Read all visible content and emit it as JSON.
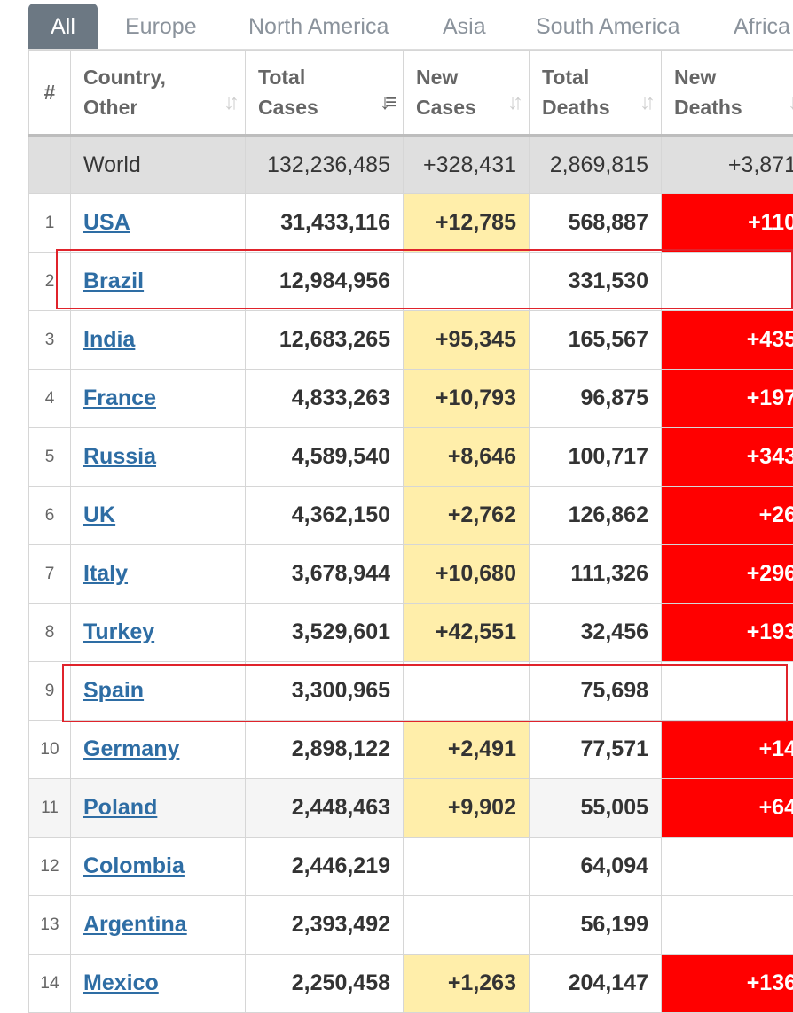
{
  "tabs": [
    {
      "label": "All",
      "active": true
    },
    {
      "label": "Europe"
    },
    {
      "label": "North America"
    },
    {
      "label": "Asia"
    },
    {
      "label": "South America"
    },
    {
      "label": "Africa"
    }
  ],
  "headers": {
    "rank": "#",
    "country": [
      "Country,",
      "Other"
    ],
    "total_cases": [
      "Total",
      "Cases"
    ],
    "new_cases": [
      "New",
      "Cases"
    ],
    "total_deaths": [
      "Total",
      "Deaths"
    ],
    "new_deaths": [
      "New",
      "Deaths"
    ]
  },
  "world": {
    "country": "World",
    "total_cases": "132,236,485",
    "new_cases": "+328,431",
    "total_deaths": "2,869,815",
    "new_deaths": "+3,871"
  },
  "rows": [
    {
      "rank": "1",
      "country": "USA",
      "total_cases": "31,433,116",
      "new_cases": "+12,785",
      "total_deaths": "568,887",
      "new_deaths": "+110"
    },
    {
      "rank": "2",
      "country": "Brazil",
      "total_cases": "12,984,956",
      "new_cases": "",
      "total_deaths": "331,530",
      "new_deaths": ""
    },
    {
      "rank": "3",
      "country": "India",
      "total_cases": "12,683,265",
      "new_cases": "+95,345",
      "total_deaths": "165,567",
      "new_deaths": "+435"
    },
    {
      "rank": "4",
      "country": "France",
      "total_cases": "4,833,263",
      "new_cases": "+10,793",
      "total_deaths": "96,875",
      "new_deaths": "+197"
    },
    {
      "rank": "5",
      "country": "Russia",
      "total_cases": "4,589,540",
      "new_cases": "+8,646",
      "total_deaths": "100,717",
      "new_deaths": "+343"
    },
    {
      "rank": "6",
      "country": "UK",
      "total_cases": "4,362,150",
      "new_cases": "+2,762",
      "total_deaths": "126,862",
      "new_deaths": "+26"
    },
    {
      "rank": "7",
      "country": "Italy",
      "total_cases": "3,678,944",
      "new_cases": "+10,680",
      "total_deaths": "111,326",
      "new_deaths": "+296"
    },
    {
      "rank": "8",
      "country": "Turkey",
      "total_cases": "3,529,601",
      "new_cases": "+42,551",
      "total_deaths": "32,456",
      "new_deaths": "+193"
    },
    {
      "rank": "9",
      "country": "Spain",
      "total_cases": "3,300,965",
      "new_cases": "",
      "total_deaths": "75,698",
      "new_deaths": ""
    },
    {
      "rank": "10",
      "country": "Germany",
      "total_cases": "2,898,122",
      "new_cases": "+2,491",
      "total_deaths": "77,571",
      "new_deaths": "+14"
    },
    {
      "rank": "11",
      "country": "Poland",
      "total_cases": "2,448,463",
      "new_cases": "+9,902",
      "total_deaths": "55,005",
      "new_deaths": "+64"
    },
    {
      "rank": "12",
      "country": "Colombia",
      "total_cases": "2,446,219",
      "new_cases": "",
      "total_deaths": "64,094",
      "new_deaths": ""
    },
    {
      "rank": "13",
      "country": "Argentina",
      "total_cases": "2,393,492",
      "new_cases": "",
      "total_deaths": "56,199",
      "new_deaths": ""
    },
    {
      "rank": "14",
      "country": "Mexico",
      "total_cases": "2,250,458",
      "new_cases": "+1,263",
      "total_deaths": "204,147",
      "new_deaths": "+136"
    }
  ],
  "colors": {
    "tab_active_bg": "#6c7883",
    "new_cases_bg": "#ffeeaa",
    "new_deaths_bg": "#ff0000",
    "link": "#2e6da4",
    "highlight_box": "#e0232b"
  },
  "icons": {
    "sort": "sort-arrows-icon",
    "sort_active": "sort-descending-icon"
  }
}
